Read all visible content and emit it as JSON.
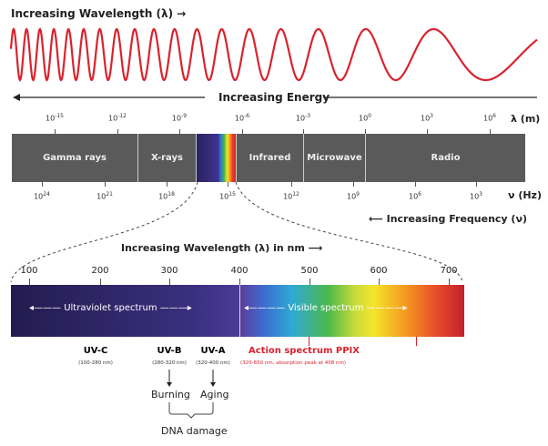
{
  "header": {
    "wavelength_title": "Increasing Wavelength (λ)",
    "energy": "Increasing Energy"
  },
  "wavelength_axis": {
    "unit": "λ (m)",
    "ticks": [
      {
        "base": "10",
        "exp": "-15"
      },
      {
        "base": "10",
        "exp": "-12"
      },
      {
        "base": "10",
        "exp": "-9"
      },
      {
        "base": "10",
        "exp": "-6"
      },
      {
        "base": "10",
        "exp": "-3"
      },
      {
        "base": "10",
        "exp": "0"
      },
      {
        "base": "10",
        "exp": "3"
      },
      {
        "base": "10",
        "exp": "6"
      }
    ]
  },
  "bands": [
    "Gamma rays",
    "X-rays",
    "Infrared",
    "Microwave",
    "Radio"
  ],
  "frequency_axis": {
    "unit": "ν (Hz)",
    "ticks": [
      {
        "base": "10",
        "exp": "24"
      },
      {
        "base": "10",
        "exp": "21"
      },
      {
        "base": "10",
        "exp": "18"
      },
      {
        "base": "10",
        "exp": "15"
      },
      {
        "base": "10",
        "exp": "12"
      },
      {
        "base": "10",
        "exp": "9"
      },
      {
        "base": "10",
        "exp": "6"
      },
      {
        "base": "10",
        "exp": "3"
      }
    ]
  },
  "frequency_label": "Increasing Frequency (ν)",
  "nm_title": "Increasing Wavelength (λ) in nm",
  "nm_ticks": [
    "100",
    "200",
    "300",
    "400",
    "500",
    "600",
    "700"
  ],
  "spectrum": {
    "uv": "Ultraviolet spectrum",
    "visible": "Visible spectrum"
  },
  "uv": [
    {
      "name": "UV-C",
      "range": "(100-280 nm)"
    },
    {
      "name": "UV-B",
      "range": "(280-320 nm)"
    },
    {
      "name": "UV-A",
      "range": "(320-400 nm)"
    }
  ],
  "ppix": {
    "name": "Action spectrum PPIX",
    "range": "(320-650 nm, absorption peak at 408 nm)"
  },
  "effects": {
    "burning": "Burning",
    "aging": "Aging",
    "dna": "DNA damage"
  },
  "colors": {
    "wave": "#d9232e",
    "bar": "#5a5a5a",
    "ppix": "#d9232e"
  }
}
